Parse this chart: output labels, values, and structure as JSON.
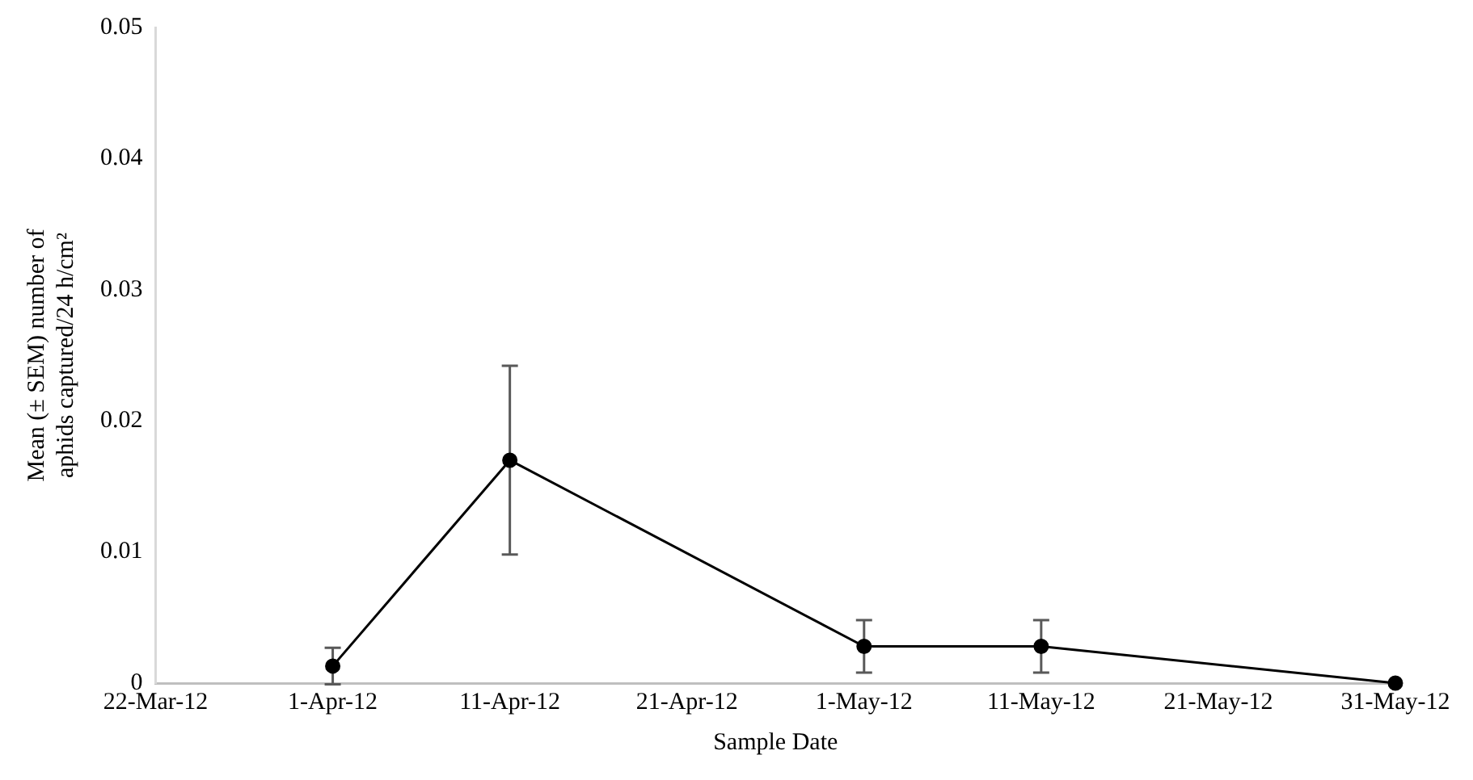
{
  "chart_data": {
    "type": "line",
    "xlabel": "Sample Date",
    "ylabel": "Mean (± SEM) number of aphids captured/24 h/cm²",
    "x": [
      "--04-01",
      "--04-11",
      "--05-01",
      "--05-11",
      "--05-31"
    ],
    "series": [
      {
        "color": "#000000",
        "values": [
          0.0013,
          0.017,
          0.0028,
          0.0028,
          0
        ],
        "errors": [
          0.0014,
          0.0072,
          0.002,
          0.002,
          null
        ]
      }
    ],
    "xlim": [
      "--03-22",
      "--05-31"
    ],
    "xticks": [
      {
        "value": "--03-22",
        "label": "22-Mar-12"
      },
      {
        "value": "--04-01",
        "label": "1-Apr-12"
      },
      {
        "value": "--04-11",
        "label": "11-Apr-12"
      },
      {
        "value": "--04-21",
        "label": "21-Apr-12"
      },
      {
        "value": "--05-01",
        "label": "1-May-12"
      },
      {
        "value": "--05-11",
        "label": "11-May-12"
      },
      {
        "value": "--05-21",
        "label": "21-May-12"
      },
      {
        "value": "--05-31",
        "label": "31-May-12"
      }
    ],
    "ylim": [
      0,
      0.05
    ],
    "yticks": [
      0,
      0.01,
      0.02,
      0.03,
      0.04,
      0.05
    ],
    "grid": false,
    "legend": false,
    "marker": "circle",
    "line_style": "solid"
  }
}
